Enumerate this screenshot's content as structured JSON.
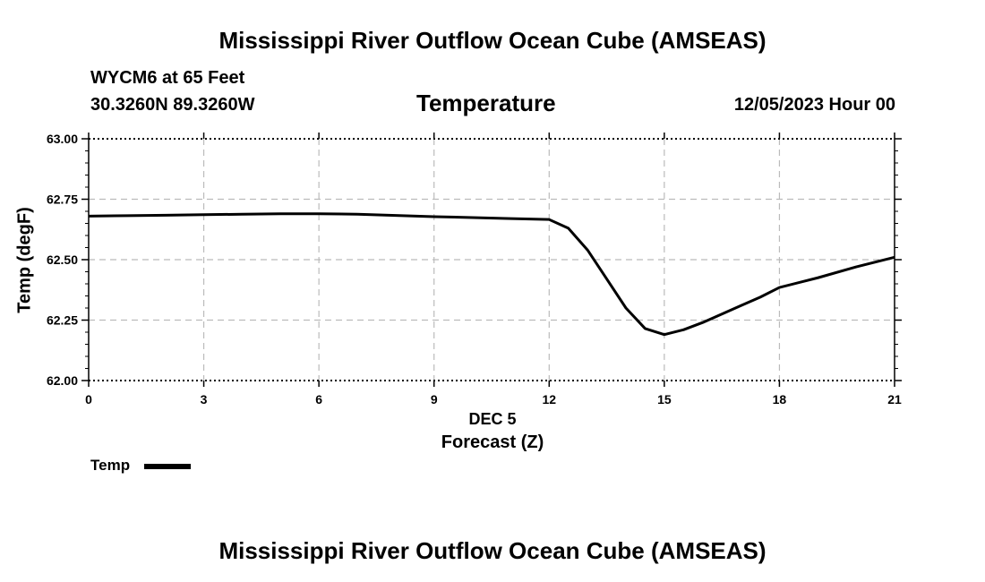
{
  "page": {
    "main_title": "Mississippi River Outflow Ocean Cube (AMSEAS)",
    "station": "WYCM6 at 65 Feet",
    "coords": "30.3260N  89.3260W",
    "datetime": "12/05/2023 Hour 00",
    "footer_title": "Mississippi River Outflow Ocean Cube (AMSEAS)"
  },
  "chart_data": {
    "type": "line",
    "title": "Temperature",
    "xlabel": "Forecast (Z)",
    "xlabel_date": "DEC 5",
    "ylabel": "Temp (degF)",
    "xlim": [
      0,
      21
    ],
    "ylim": [
      62.0,
      63.0
    ],
    "x_ticks": [
      0,
      3,
      6,
      9,
      12,
      15,
      18,
      21
    ],
    "x_tick_labels": [
      "0",
      "3",
      "6",
      "9",
      "12",
      "15",
      "18",
      "21"
    ],
    "y_ticks": [
      62.0,
      62.25,
      62.5,
      62.75,
      63.0
    ],
    "y_tick_labels": [
      "62.00",
      "62.25",
      "62.50",
      "62.75",
      "63.00"
    ],
    "grid": true,
    "series": [
      {
        "name": "Temp",
        "color": "#000000",
        "x": [
          0,
          1,
          2,
          3,
          4,
          5,
          6,
          7,
          8,
          9,
          10,
          11,
          12,
          12.5,
          13,
          13.5,
          14,
          14.5,
          15,
          15.5,
          16,
          16.5,
          17,
          17.5,
          18,
          19,
          20,
          21
        ],
        "values": [
          62.68,
          62.682,
          62.684,
          62.686,
          62.688,
          62.69,
          62.69,
          62.688,
          62.683,
          62.678,
          62.674,
          62.67,
          62.666,
          62.63,
          62.54,
          62.42,
          62.3,
          62.215,
          62.19,
          62.21,
          62.24,
          62.275,
          62.31,
          62.345,
          62.385,
          62.425,
          62.47,
          62.51
        ]
      }
    ],
    "legend": {
      "position": "bottom-left",
      "label": "Temp"
    }
  }
}
